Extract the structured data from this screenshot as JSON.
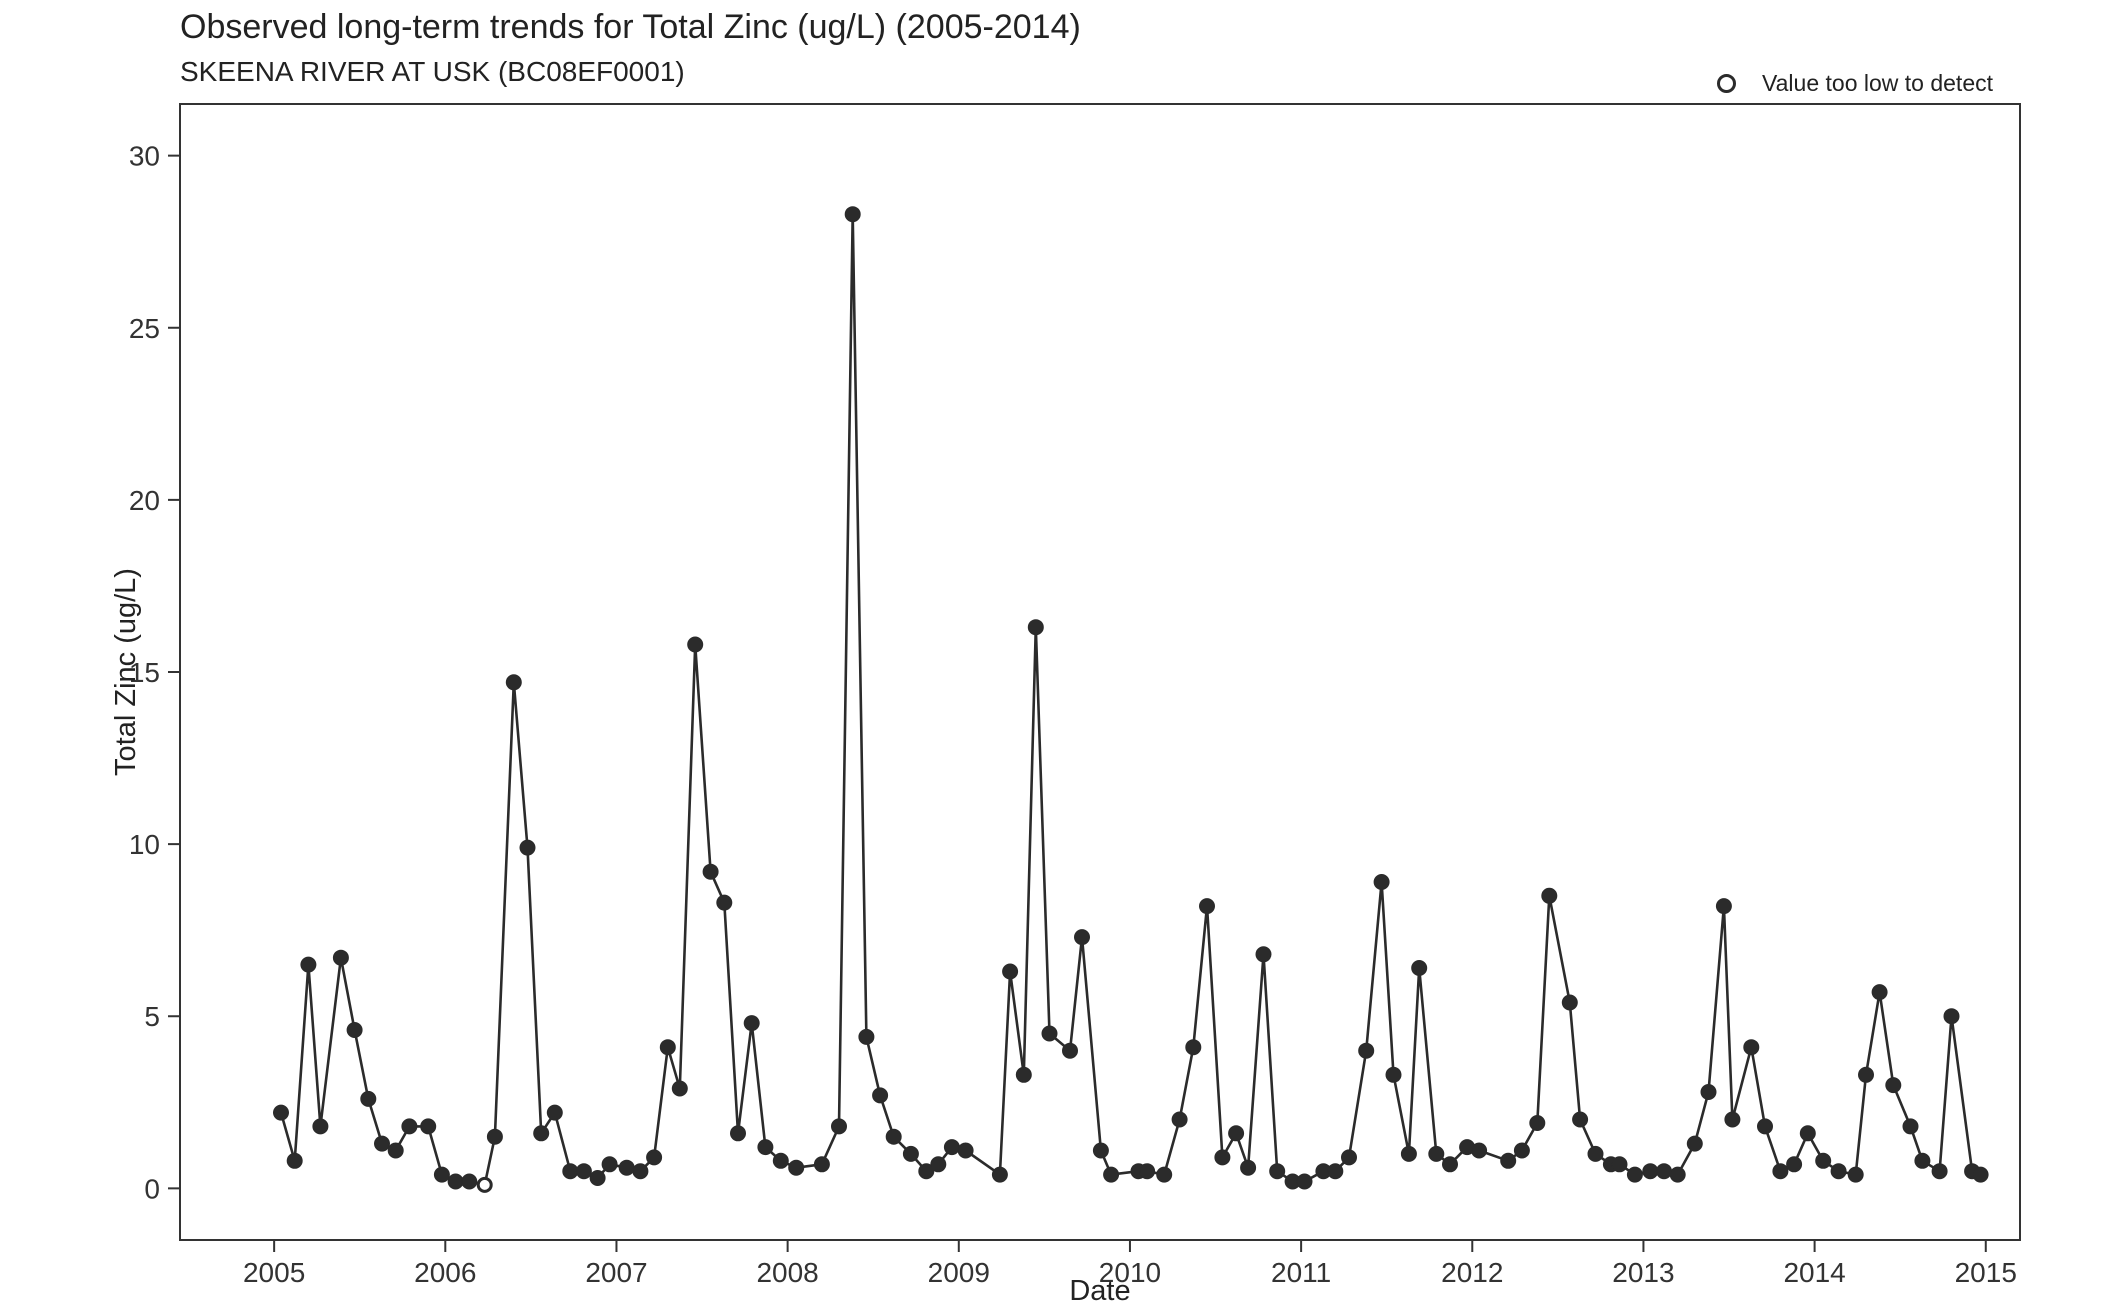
{
  "chart_data": {
    "type": "line",
    "title": "Observed long-term trends for Total Zinc (ug/L) (2005-2014)",
    "subtitle": "SKEENA RIVER AT USK (BC08EF0001)",
    "xlabel": "Date",
    "ylabel": "Total Zinc (ug/L)",
    "xlim": [
      2004.45,
      2015.2
    ],
    "ylim": [
      -1.5,
      31.5
    ],
    "x_ticks": [
      2005,
      2006,
      2007,
      2008,
      2009,
      2010,
      2011,
      2012,
      2013,
      2014,
      2015
    ],
    "y_ticks": [
      0,
      5,
      10,
      15,
      20,
      25,
      30
    ],
    "grid": false,
    "legend": {
      "position": "top-right",
      "label": "Value too low to detect"
    },
    "line_color": "#2b2b2b",
    "series": [
      {
        "x": [
          2005.04,
          2005.12,
          2005.2,
          2005.27,
          2005.39,
          2005.47,
          2005.55,
          2005.63,
          2005.71,
          2005.79,
          2005.9,
          2005.98,
          2006.06,
          2006.14,
          2006.23,
          2006.29,
          2006.4,
          2006.48,
          2006.56,
          2006.64,
          2006.73,
          2006.81,
          2006.89,
          2006.96,
          2007.06,
          2007.14,
          2007.22,
          2007.3,
          2007.37,
          2007.46,
          2007.55,
          2007.63,
          2007.71,
          2007.79,
          2007.87,
          2007.96,
          2008.05,
          2008.2,
          2008.3,
          2008.38,
          2008.46,
          2008.54,
          2008.62,
          2008.72,
          2008.81,
          2008.88,
          2008.96,
          2009.04,
          2009.24,
          2009.3,
          2009.38,
          2009.45,
          2009.53,
          2009.65,
          2009.72,
          2009.83,
          2009.89,
          2010.05,
          2010.1,
          2010.2,
          2010.29,
          2010.37,
          2010.45,
          2010.54,
          2010.62,
          2010.69,
          2010.78,
          2010.86,
          2010.95,
          2011.02,
          2011.13,
          2011.2,
          2011.28,
          2011.38,
          2011.47,
          2011.54,
          2011.63,
          2011.69,
          2011.79,
          2011.87,
          2011.97,
          2012.04,
          2012.21,
          2012.29,
          2012.38,
          2012.45,
          2012.57,
          2012.63,
          2012.72,
          2012.81,
          2012.86,
          2012.95,
          2013.04,
          2013.12,
          2013.2,
          2013.3,
          2013.38,
          2013.47,
          2013.52,
          2013.63,
          2013.71,
          2013.8,
          2013.88,
          2013.96,
          2014.05,
          2014.14,
          2014.24,
          2014.3,
          2014.38,
          2014.46,
          2014.56,
          2014.63,
          2014.73,
          2014.8,
          2014.92,
          2014.97
        ],
        "y": [
          2.2,
          0.8,
          6.5,
          1.8,
          6.7,
          4.6,
          2.6,
          1.3,
          1.1,
          1.8,
          1.8,
          0.4,
          0.2,
          0.2,
          0.1,
          1.5,
          14.7,
          9.9,
          1.6,
          2.2,
          0.5,
          0.5,
          0.3,
          0.7,
          0.6,
          0.5,
          0.9,
          4.1,
          2.9,
          15.8,
          9.2,
          8.3,
          1.6,
          4.8,
          1.2,
          0.8,
          0.6,
          0.7,
          1.8,
          28.3,
          4.4,
          2.7,
          1.5,
          1.0,
          0.5,
          0.7,
          1.2,
          1.1,
          0.4,
          6.3,
          3.3,
          16.3,
          4.5,
          4.0,
          7.3,
          1.1,
          0.4,
          0.5,
          0.5,
          0.4,
          2.0,
          4.1,
          8.2,
          0.9,
          1.6,
          0.6,
          6.8,
          0.5,
          0.2,
          0.2,
          0.5,
          0.5,
          0.9,
          4.0,
          8.9,
          3.3,
          1.0,
          6.4,
          1.0,
          0.7,
          1.2,
          1.1,
          0.8,
          1.1,
          1.9,
          8.5,
          5.4,
          2.0,
          1.0,
          0.7,
          0.7,
          0.4,
          0.5,
          0.5,
          0.4,
          1.3,
          2.8,
          8.2,
          2.0,
          4.1,
          1.8,
          0.5,
          0.7,
          1.6,
          0.8,
          0.5,
          0.4,
          3.3,
          5.7,
          3.0,
          1.8,
          0.8,
          0.5,
          5.0,
          0.5,
          0.4
        ],
        "censored": [
          false,
          false,
          false,
          false,
          false,
          false,
          false,
          false,
          false,
          false,
          false,
          false,
          false,
          false,
          true,
          false,
          false,
          false,
          false,
          false,
          false,
          false,
          false,
          false,
          false,
          false,
          false,
          false,
          false,
          false,
          false,
          false,
          false,
          false,
          false,
          false,
          false,
          false,
          false,
          false,
          false,
          false,
          false,
          false,
          false,
          false,
          false,
          false,
          false,
          false,
          false,
          false,
          false,
          false,
          false,
          false,
          false,
          false,
          false,
          false,
          false,
          false,
          false,
          false,
          false,
          false,
          false,
          false,
          false,
          false,
          false,
          false,
          false,
          false,
          false,
          false,
          false,
          false,
          false,
          false,
          false,
          false,
          false,
          false,
          false,
          false,
          false,
          false,
          false,
          false,
          false,
          false,
          false,
          false,
          false,
          false,
          false,
          false,
          false,
          false,
          false,
          false,
          false,
          false,
          false,
          false,
          false,
          false,
          false,
          false,
          false,
          false,
          false,
          false,
          false,
          false
        ]
      }
    ]
  }
}
